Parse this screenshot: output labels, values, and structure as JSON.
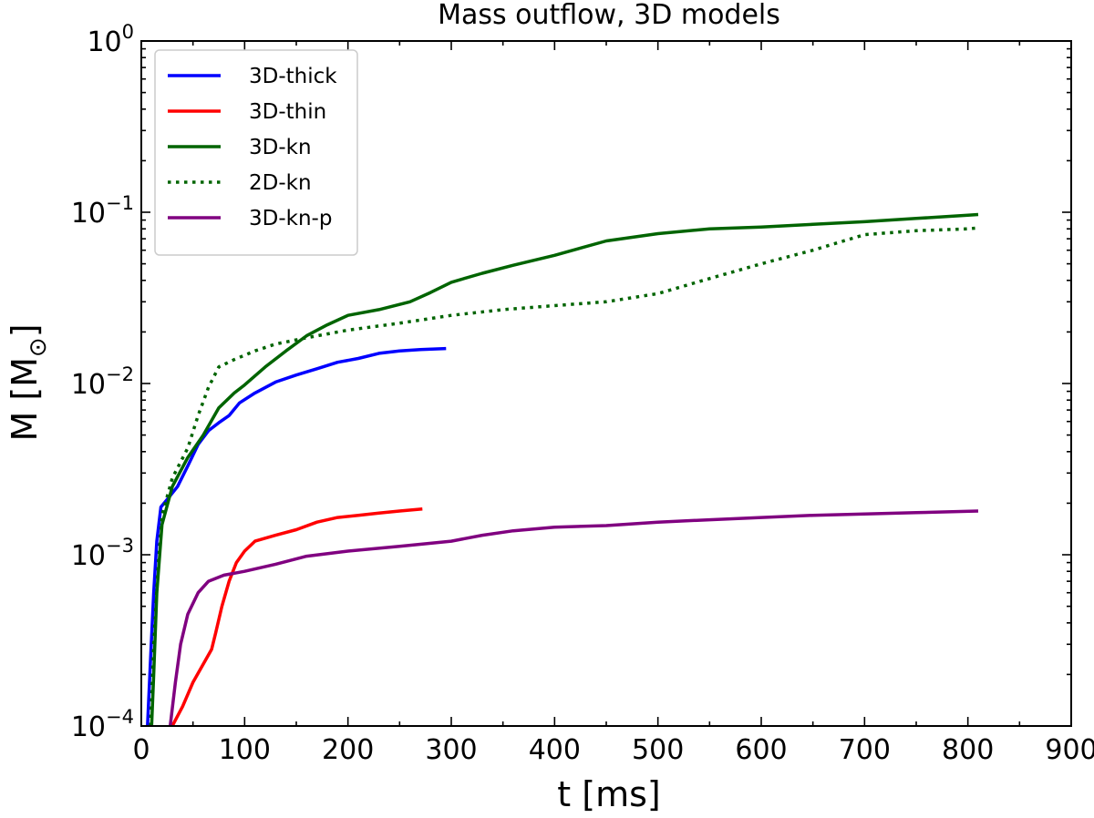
{
  "chart_data": {
    "type": "line",
    "title": "Mass outflow, 3D  models",
    "xlabel": "t [ms]",
    "ylabel_main": "M [M",
    "ylabel_sub": "⊙",
    "ylabel_close": "]",
    "xlim": [
      0,
      900
    ],
    "ylim": [
      0.0001,
      1
    ],
    "yscale": "log",
    "x_ticks": [
      0,
      100,
      200,
      300,
      400,
      500,
      600,
      700,
      800,
      900
    ],
    "x_tick_labels": [
      "0",
      "100",
      "200",
      "300",
      "400",
      "500",
      "600",
      "700",
      "800",
      "900"
    ],
    "y_ticks": [
      {
        "value": 0.0001,
        "base": "10",
        "exp": "−4"
      },
      {
        "value": 0.001,
        "base": "10",
        "exp": "−3"
      },
      {
        "value": 0.01,
        "base": "10",
        "exp": "−2"
      },
      {
        "value": 0.1,
        "base": "10",
        "exp": "−1"
      },
      {
        "value": 1,
        "base": "10",
        "exp": "0"
      }
    ],
    "grid": false,
    "legend_position": "top-left",
    "series": [
      {
        "name": "3D-thick",
        "color": "#0000ff",
        "dash": "solid",
        "points": [
          [
            6,
            0.0001
          ],
          [
            9,
            0.00025
          ],
          [
            12,
            0.0006
          ],
          [
            15,
            0.0012
          ],
          [
            19,
            0.0019
          ],
          [
            25,
            0.0021
          ],
          [
            35,
            0.0025
          ],
          [
            45,
            0.0033
          ],
          [
            55,
            0.0044
          ],
          [
            65,
            0.0053
          ],
          [
            75,
            0.0059
          ],
          [
            85,
            0.0065
          ],
          [
            95,
            0.0077
          ],
          [
            110,
            0.0088
          ],
          [
            130,
            0.0102
          ],
          [
            150,
            0.0112
          ],
          [
            170,
            0.0122
          ],
          [
            190,
            0.0133
          ],
          [
            210,
            0.014
          ],
          [
            230,
            0.015
          ],
          [
            250,
            0.0155
          ],
          [
            270,
            0.0158
          ],
          [
            295,
            0.016
          ]
        ]
      },
      {
        "name": "3D-thin",
        "color": "#ff0000",
        "dash": "solid",
        "points": [
          [
            30,
            0.0001
          ],
          [
            40,
            0.00013
          ],
          [
            50,
            0.00018
          ],
          [
            60,
            0.00023
          ],
          [
            68,
            0.00028
          ],
          [
            72,
            0.00035
          ],
          [
            78,
            0.0005
          ],
          [
            85,
            0.0007
          ],
          [
            92,
            0.0009
          ],
          [
            100,
            0.00105
          ],
          [
            110,
            0.0012
          ],
          [
            130,
            0.0013
          ],
          [
            150,
            0.0014
          ],
          [
            170,
            0.00155
          ],
          [
            190,
            0.00165
          ],
          [
            210,
            0.0017
          ],
          [
            230,
            0.00175
          ],
          [
            250,
            0.0018
          ],
          [
            272,
            0.00185
          ]
        ]
      },
      {
        "name": "3D-kn",
        "color": "#006400",
        "dash": "solid",
        "points": [
          [
            10,
            0.0001
          ],
          [
            12,
            0.0002
          ],
          [
            15,
            0.0006
          ],
          [
            20,
            0.0015
          ],
          [
            30,
            0.0025
          ],
          [
            45,
            0.0037
          ],
          [
            60,
            0.005
          ],
          [
            75,
            0.0072
          ],
          [
            90,
            0.0088
          ],
          [
            100,
            0.0098
          ],
          [
            120,
            0.0125
          ],
          [
            140,
            0.0155
          ],
          [
            160,
            0.019
          ],
          [
            180,
            0.022
          ],
          [
            200,
            0.025
          ],
          [
            230,
            0.027
          ],
          [
            260,
            0.03
          ],
          [
            280,
            0.034
          ],
          [
            300,
            0.039
          ],
          [
            330,
            0.044
          ],
          [
            360,
            0.049
          ],
          [
            400,
            0.056
          ],
          [
            450,
            0.068
          ],
          [
            500,
            0.075
          ],
          [
            550,
            0.08
          ],
          [
            600,
            0.082
          ],
          [
            650,
            0.085
          ],
          [
            700,
            0.088
          ],
          [
            750,
            0.092
          ],
          [
            800,
            0.096
          ],
          [
            810,
            0.097
          ]
        ]
      },
      {
        "name": "2D-kn",
        "color": "#006400",
        "dash": "dotted",
        "points": [
          [
            9,
            0.0001
          ],
          [
            12,
            0.0003
          ],
          [
            16,
            0.0008
          ],
          [
            20,
            0.0017
          ],
          [
            30,
            0.0028
          ],
          [
            45,
            0.0042
          ],
          [
            55,
            0.0065
          ],
          [
            65,
            0.0095
          ],
          [
            75,
            0.0125
          ],
          [
            90,
            0.0138
          ],
          [
            110,
            0.0155
          ],
          [
            130,
            0.017
          ],
          [
            160,
            0.0185
          ],
          [
            200,
            0.0205
          ],
          [
            250,
            0.0225
          ],
          [
            300,
            0.025
          ],
          [
            350,
            0.027
          ],
          [
            400,
            0.0285
          ],
          [
            450,
            0.03
          ],
          [
            500,
            0.0335
          ],
          [
            550,
            0.041
          ],
          [
            600,
            0.05
          ],
          [
            650,
            0.06
          ],
          [
            700,
            0.074
          ],
          [
            750,
            0.078
          ],
          [
            800,
            0.08
          ],
          [
            810,
            0.081
          ]
        ]
      },
      {
        "name": "3D-kn-p",
        "color": "#800080",
        "dash": "solid",
        "points": [
          [
            28,
            0.0001
          ],
          [
            33,
            0.00018
          ],
          [
            38,
            0.0003
          ],
          [
            45,
            0.00045
          ],
          [
            55,
            0.0006
          ],
          [
            65,
            0.0007
          ],
          [
            80,
            0.00076
          ],
          [
            100,
            0.0008
          ],
          [
            130,
            0.00088
          ],
          [
            160,
            0.00098
          ],
          [
            200,
            0.00105
          ],
          [
            250,
            0.00112
          ],
          [
            300,
            0.0012
          ],
          [
            330,
            0.0013
          ],
          [
            360,
            0.00138
          ],
          [
            400,
            0.00145
          ],
          [
            450,
            0.00148
          ],
          [
            500,
            0.00155
          ],
          [
            550,
            0.0016
          ],
          [
            600,
            0.00165
          ],
          [
            650,
            0.0017
          ],
          [
            700,
            0.00173
          ],
          [
            750,
            0.00176
          ],
          [
            810,
            0.0018
          ]
        ]
      }
    ]
  }
}
